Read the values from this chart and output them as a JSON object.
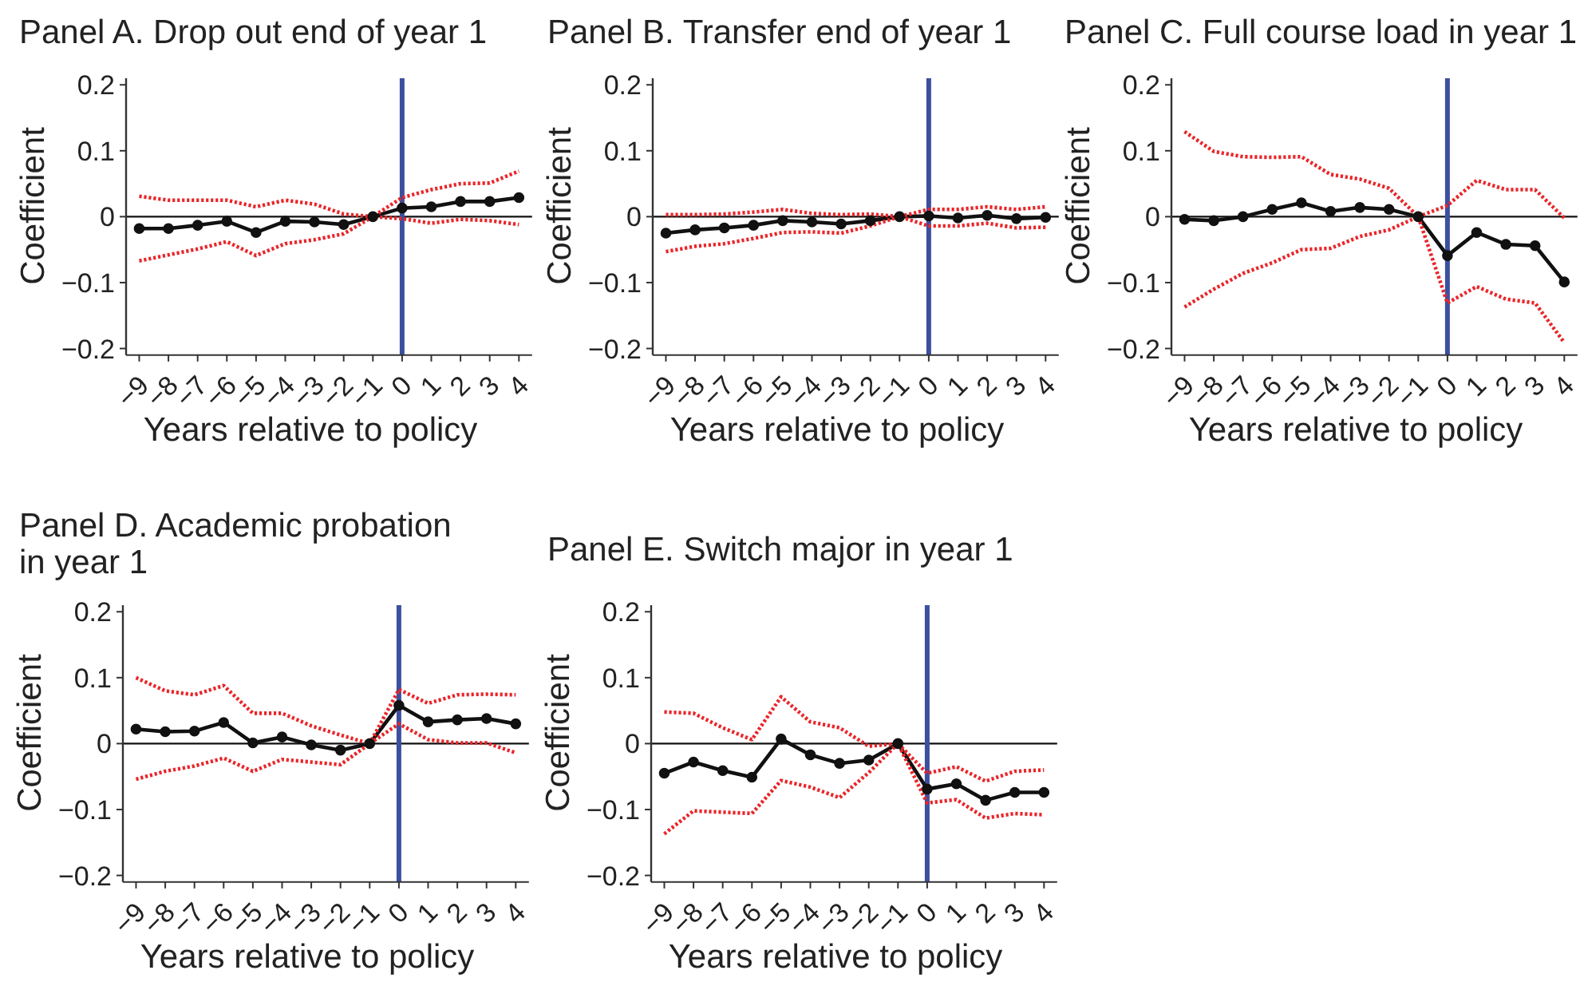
{
  "chart_data": [
    {
      "type": "line",
      "title": "Panel A. Drop out end of year 1",
      "xlabel": "Years relative to policy",
      "ylabel": "Coefficient",
      "x": [
        -9,
        -8,
        -7,
        -6,
        -5,
        -4,
        -3,
        -2,
        -1,
        0,
        1,
        2,
        3,
        4
      ],
      "xlim": [
        -9.45,
        4.45
      ],
      "xticks": [
        -9,
        -8,
        -7,
        -6,
        -5,
        -4,
        -3,
        -2,
        -1,
        0,
        1,
        2,
        3,
        4
      ],
      "ylim": [
        -0.21,
        0.21
      ],
      "yticks": [
        -0.2,
        -0.1,
        0,
        0.1,
        0.2
      ],
      "marker": "circle",
      "series": [
        {
          "color": "#111111",
          "values": [
            -0.018,
            -0.018,
            -0.013,
            -0.007,
            -0.024,
            -0.007,
            -0.008,
            -0.012,
            0,
            0.013,
            0.015,
            0.023,
            0.023,
            0.029
          ]
        },
        {
          "color": "#e8262a",
          "line_style": "dotted",
          "marker": "none",
          "values": [
            0.031,
            0.025,
            0.025,
            0.025,
            0.015,
            0.025,
            0.019,
            0.004,
            0,
            0.029,
            0.041,
            0.05,
            0.051,
            0.069
          ]
        },
        {
          "color": "#e8262a",
          "line_style": "dotted",
          "marker": "none",
          "values": [
            -0.067,
            -0.058,
            -0.049,
            -0.038,
            -0.059,
            -0.041,
            -0.035,
            -0.026,
            0,
            -0.003,
            -0.01,
            -0.004,
            -0.006,
            -0.012
          ]
        }
      ],
      "ref_lines": [
        {
          "axis": "y",
          "value": 0,
          "color": "#111111"
        },
        {
          "axis": "x",
          "value": 0,
          "color": "#3d4f9f"
        }
      ]
    },
    {
      "type": "line",
      "title": "Panel B. Transfer end of year 1",
      "xlabel": "Years relative to policy",
      "ylabel": "Coefficient",
      "x": [
        -9,
        -8,
        -7,
        -6,
        -5,
        -4,
        -3,
        -2,
        -1,
        0,
        1,
        2,
        3,
        4
      ],
      "xlim": [
        -9.45,
        4.45
      ],
      "xticks": [
        -9,
        -8,
        -7,
        -6,
        -5,
        -4,
        -3,
        -2,
        -1,
        0,
        1,
        2,
        3,
        4
      ],
      "ylim": [
        -0.21,
        0.21
      ],
      "yticks": [
        -0.2,
        -0.1,
        0,
        0.1,
        0.2
      ],
      "marker": "circle",
      "series": [
        {
          "color": "#111111",
          "values": [
            -0.025,
            -0.02,
            -0.017,
            -0.013,
            -0.006,
            -0.008,
            -0.011,
            -0.006,
            0,
            0.001,
            -0.002,
            0.002,
            -0.003,
            -0.001
          ]
        },
        {
          "color": "#e8262a",
          "line_style": "dotted",
          "marker": "none",
          "values": [
            0.003,
            0.003,
            0.004,
            0.007,
            0.011,
            0.005,
            0.003,
            0.004,
            0,
            0.011,
            0.011,
            0.015,
            0.011,
            0.015
          ]
        },
        {
          "color": "#e8262a",
          "line_style": "dotted",
          "marker": "none",
          "values": [
            -0.053,
            -0.045,
            -0.041,
            -0.033,
            -0.024,
            -0.023,
            -0.025,
            -0.014,
            0,
            -0.014,
            -0.014,
            -0.01,
            -0.017,
            -0.016
          ]
        }
      ],
      "ref_lines": [
        {
          "axis": "y",
          "value": 0,
          "color": "#111111"
        },
        {
          "axis": "x",
          "value": 0,
          "color": "#3d4f9f"
        }
      ]
    },
    {
      "type": "line",
      "title": "Panel C. Full course load in year 1",
      "xlabel": "Years relative to policy",
      "ylabel": "Coefficient",
      "x": [
        -9,
        -8,
        -7,
        -6,
        -5,
        -4,
        -3,
        -2,
        -1,
        0,
        1,
        2,
        3,
        4
      ],
      "xlim": [
        -9.45,
        4.45
      ],
      "xticks": [
        -9,
        -8,
        -7,
        -6,
        -5,
        -4,
        -3,
        -2,
        -1,
        0,
        1,
        2,
        3,
        4
      ],
      "ylim": [
        -0.21,
        0.21
      ],
      "yticks": [
        -0.2,
        -0.1,
        0,
        0.1,
        0.2
      ],
      "marker": "circle",
      "series": [
        {
          "color": "#111111",
          "values": [
            -0.004,
            -0.006,
            0,
            0.011,
            0.021,
            0.008,
            0.014,
            0.011,
            0,
            -0.059,
            -0.024,
            -0.042,
            -0.044,
            -0.099
          ]
        },
        {
          "color": "#e8262a",
          "line_style": "dotted",
          "marker": "none",
          "values": [
            0.129,
            0.099,
            0.091,
            0.09,
            0.091,
            0.064,
            0.057,
            0.043,
            0,
            0.017,
            0.055,
            0.041,
            0.041,
            -0.002
          ]
        },
        {
          "color": "#e8262a",
          "line_style": "dotted",
          "marker": "none",
          "values": [
            -0.137,
            -0.11,
            -0.086,
            -0.07,
            -0.05,
            -0.048,
            -0.03,
            -0.02,
            0,
            -0.131,
            -0.106,
            -0.125,
            -0.131,
            -0.191
          ]
        }
      ],
      "ref_lines": [
        {
          "axis": "y",
          "value": 0,
          "color": "#111111"
        },
        {
          "axis": "x",
          "value": 0,
          "color": "#3d4f9f"
        }
      ]
    },
    {
      "type": "line",
      "title": "Panel D. Academic probation\nin year 1",
      "xlabel": "Years relative to policy",
      "ylabel": "Coefficient",
      "x": [
        -9,
        -8,
        -7,
        -6,
        -5,
        -4,
        -3,
        -2,
        -1,
        0,
        1,
        2,
        3,
        4
      ],
      "xlim": [
        -9.45,
        4.45
      ],
      "xticks": [
        -9,
        -8,
        -7,
        -6,
        -5,
        -4,
        -3,
        -2,
        -1,
        0,
        1,
        2,
        3,
        4
      ],
      "ylim": [
        -0.21,
        0.21
      ],
      "yticks": [
        -0.2,
        -0.1,
        0,
        0.1,
        0.2
      ],
      "marker": "circle",
      "series": [
        {
          "color": "#111111",
          "values": [
            0.022,
            0.018,
            0.019,
            0.032,
            0.001,
            0.01,
            -0.002,
            -0.01,
            0,
            0.058,
            0.033,
            0.036,
            0.038,
            0.03
          ]
        },
        {
          "color": "#e8262a",
          "line_style": "dotted",
          "marker": "none",
          "values": [
            0.1,
            0.08,
            0.074,
            0.088,
            0.046,
            0.046,
            0.027,
            0.013,
            0,
            0.082,
            0.061,
            0.074,
            0.075,
            0.074
          ]
        },
        {
          "color": "#e8262a",
          "line_style": "dotted",
          "marker": "none",
          "values": [
            -0.054,
            -0.042,
            -0.034,
            -0.022,
            -0.042,
            -0.024,
            -0.028,
            -0.032,
            0,
            0.03,
            0.006,
            0.001,
            0.001,
            -0.014
          ]
        }
      ],
      "ref_lines": [
        {
          "axis": "y",
          "value": 0,
          "color": "#111111"
        },
        {
          "axis": "x",
          "value": 0,
          "color": "#3d4f9f"
        }
      ]
    },
    {
      "type": "line",
      "title": "Panel E. Switch major in year 1",
      "xlabel": "Years relative to policy",
      "ylabel": "Coefficient",
      "x": [
        -9,
        -8,
        -7,
        -6,
        -5,
        -4,
        -3,
        -2,
        -1,
        0,
        1,
        2,
        3,
        4
      ],
      "xlim": [
        -9.45,
        4.45
      ],
      "xticks": [
        -9,
        -8,
        -7,
        -6,
        -5,
        -4,
        -3,
        -2,
        -1,
        0,
        1,
        2,
        3,
        4
      ],
      "ylim": [
        -0.21,
        0.21
      ],
      "yticks": [
        -0.2,
        -0.1,
        0,
        0.1,
        0.2
      ],
      "marker": "circle",
      "series": [
        {
          "color": "#111111",
          "values": [
            -0.045,
            -0.028,
            -0.041,
            -0.051,
            0.007,
            -0.017,
            -0.03,
            -0.025,
            0,
            -0.069,
            -0.061,
            -0.086,
            -0.074,
            -0.074
          ]
        },
        {
          "color": "#e8262a",
          "line_style": "dotted",
          "marker": "none",
          "values": [
            0.048,
            0.046,
            0.024,
            0.006,
            0.071,
            0.033,
            0.024,
            -0.004,
            0,
            -0.045,
            -0.035,
            -0.057,
            -0.042,
            -0.04
          ]
        },
        {
          "color": "#e8262a",
          "line_style": "dotted",
          "marker": "none",
          "values": [
            -0.137,
            -0.102,
            -0.104,
            -0.106,
            -0.056,
            -0.066,
            -0.082,
            -0.044,
            0,
            -0.09,
            -0.085,
            -0.113,
            -0.106,
            -0.108
          ]
        }
      ],
      "ref_lines": [
        {
          "axis": "y",
          "value": 0,
          "color": "#111111"
        },
        {
          "axis": "x",
          "value": 0,
          "color": "#3d4f9f"
        }
      ]
    }
  ]
}
